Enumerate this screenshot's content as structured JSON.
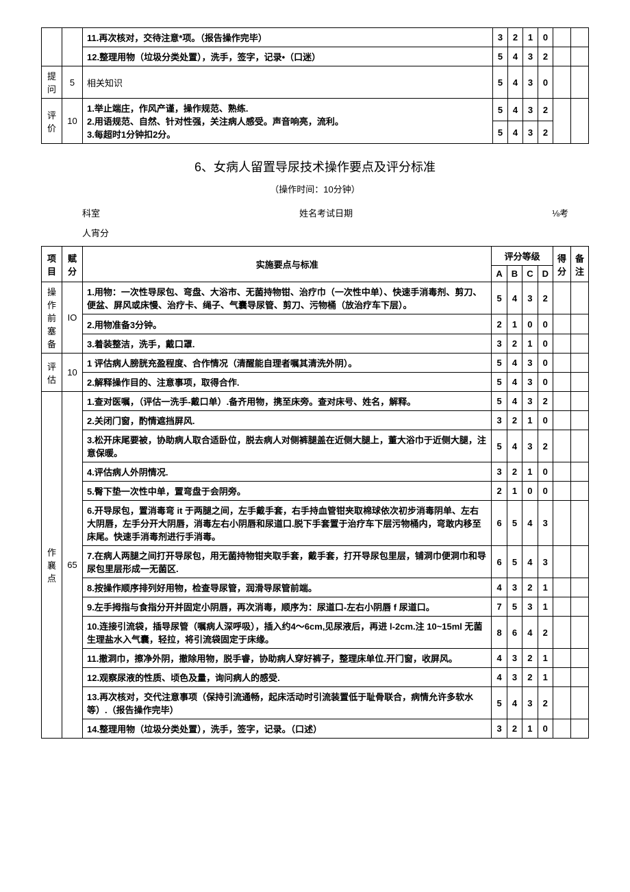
{
  "top_table": {
    "rows": [
      {
        "items": [
          "11.再次核对，交待注意*项。（报告操作完毕）",
          "12.整理用物（垃圾分类处置），洗手，签字，记录•（口迷）"
        ],
        "scores": [
          [
            "3",
            "2",
            "1",
            "0"
          ],
          [
            "5",
            "4",
            "3",
            "2"
          ]
        ]
      },
      {
        "cat": "提问",
        "weight": "5",
        "items": [
          "相关知识"
        ],
        "scores": [
          [
            "5",
            "4",
            "3",
            "0"
          ]
        ]
      },
      {
        "cat": "评价",
        "weight": "10",
        "items": [
          "1.举止端庄，作风产谨，操作规范、熟练.",
          "2.用语规范、自然、针对性强，关注病人感受。声音响亮，流利。",
          "3.每超时1分钟扣2分。"
        ],
        "scores": [
          [
            "5",
            "4",
            "3",
            "2"
          ],
          [
            "5",
            "4",
            "3",
            "2"
          ]
        ]
      }
    ]
  },
  "title": "6、女病人留置导尿技术操作要点及评分标准",
  "subtitle": "（操作时间：10分钟）",
  "header": {
    "dept": "科室",
    "name_date": "姓名考试日期",
    "examiner": "⅛考",
    "score_line": "人宵分"
  },
  "table2": {
    "headers": {
      "col1": "项目",
      "col2": "赋分",
      "col3": "实施要点与标准",
      "grade": "评分等级",
      "score": "得分",
      "note": "备注",
      "A": "A",
      "B": "B",
      "C": "C",
      "D": "D"
    },
    "groups": [
      {
        "cat": "操作前塞备",
        "weight": "IO",
        "rows": [
          {
            "text": "1.用物：一次性导尿包、弯盘、大浴市、无菌持物钳、治疗巾（一次性中单）、快速手消毒剂、剪刀、便盆、屏风或床慢、治疗卡、绳子、气囊导尿管、剪刀、污物桶（放治疗车下层）。",
            "s": [
              "5",
              "4",
              "3",
              "2"
            ]
          },
          {
            "text": "2.用物准备3分钟。",
            "s": [
              "2",
              "1",
              "0",
              "0"
            ]
          },
          {
            "text": "3.着装整洁，洗手，戴口罩.",
            "s": [
              "3",
              "2",
              "1",
              "0"
            ]
          }
        ]
      },
      {
        "cat": "评估",
        "weight": "10",
        "rows": [
          {
            "text": "1 评估病人膀胱充盈程度、合作情况（清醒能自理者嘱其清洗外阴）。",
            "s": [
              "5",
              "4",
              "3",
              "0"
            ]
          },
          {
            "text": "2.解释操作目的、注意事项，取得合作.",
            "s": [
              "5",
              "4",
              "3",
              "0"
            ]
          }
        ]
      },
      {
        "cat": "作襄点",
        "weight": "65",
        "rows": [
          {
            "text": "1.查对医嘱，（评估一洗手-戴口单）.备齐用物，携至床旁。查对床号、姓名，解释。",
            "s": [
              "5",
              "4",
              "3",
              "2"
            ]
          },
          {
            "text": "2.关闭门窗，酌情遮挡屏风.",
            "s": [
              "3",
              "2",
              "1",
              "0"
            ]
          },
          {
            "text": "3.松开床尾要被，协助病人取合适卧位，脱去病人对侧裤腿盖在近侧大腿上，董大浴巾于近侧大腿，注意保暖。",
            "s": [
              "5",
              "4",
              "3",
              "2"
            ]
          },
          {
            "text": "4.评估病人外阴情况.",
            "s": [
              "3",
              "2",
              "1",
              "0"
            ]
          },
          {
            "text": "5.臀下垫一次性中单，置弯盘于会阴旁。",
            "s": [
              "2",
              "1",
              "0",
              "0"
            ]
          },
          {
            "text": "6.开导尿包，置消毒弯 it 于两腿之间，左手戴手套，右手持血管钳夹取棉球依次初步消毒阴单、左右大阴唇，左手分开大阴唇，消毒左右小阴唇和尿道口.脱下手套置于治疗车下层污物桶内，弯敢内移至床尾。快速手消毒剂进行手消毒。",
            "s": [
              "6",
              "5",
              "4",
              "3"
            ]
          },
          {
            "text": "7.在病人两腿之间打开导尿包，用无菌持物钳夹取手套，戴手套，打开导尿包里层，铺洞巾便洞巾和导尿包里层形成一无菌区.",
            "s": [
              "6",
              "5",
              "4",
              "3"
            ]
          },
          {
            "text": "8.按操作顺序排列好用物，检查导尿管，润滑导尿管前端。",
            "s": [
              "4",
              "3",
              "2",
              "1"
            ]
          },
          {
            "text": "9.左手拇指与食指分开并固定小阴唇，再次消毒，顺序为：尿道口-左右小阴唇 f 尿道口。",
            "s": [
              "7",
              "5",
              "3",
              "1"
            ]
          },
          {
            "text": "10.连接引流袋，插导尿管（嘱病人深呼吸），插入约4～6cm,见尿液后，再进 l-2cm.注 10~15ml 无菌生理盐水入气囊，轻拉，将引流袋固定于床缘。",
            "s": [
              "8",
              "6",
              "4",
              "2"
            ]
          },
          {
            "text": "11.撤洞巾，擦净外阴，撤除用物，脱手睿，协助病人穿好裤子，整理床单位.开门窗，收屏风。",
            "s": [
              "4",
              "3",
              "2",
              "1"
            ]
          },
          {
            "text": "12.观察尿液的性质、顷色及量，询问病人的感受.",
            "s": [
              "4",
              "3",
              "2",
              "1"
            ]
          },
          {
            "text": "13.再次核对，交代注意事项（保持引流通畅，起床活动时引流装置低于耻骨联合，病情允许多软水等）.（报告操作完毕）",
            "s": [
              "5",
              "4",
              "3",
              "2"
            ]
          },
          {
            "text": "14.整理用物（垃圾分类处置），洗手，签字，记录。（口述）",
            "s": [
              "3",
              "2",
              "1",
              "0"
            ]
          }
        ]
      }
    ]
  }
}
